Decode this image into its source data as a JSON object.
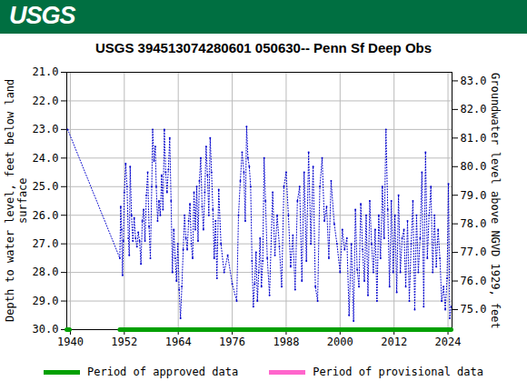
{
  "header": {
    "logo_text": "USGS",
    "color": "#006f41"
  },
  "chart_data": {
    "type": "line",
    "title": "USGS 394513074280601 050630-- Penn Sf Deep Obs",
    "ylabel": "Depth to water level, feet below land surface",
    "y2label": "Groundwater level above NGVD 1929, feet",
    "color": "#0000cc",
    "marker": "dot",
    "line_style": "dotted",
    "grid": true,
    "x": [
      1939.4,
      1951.0,
      1951.2,
      1951.4,
      1951.6,
      1951.8,
      1952.0,
      1952.3,
      1952.6,
      1952.9,
      1953.1,
      1953.3,
      1953.6,
      1953.9,
      1954.2,
      1954.5,
      1954.8,
      1955.1,
      1955.4,
      1955.7,
      1956.0,
      1956.3,
      1956.6,
      1956.9,
      1957.2,
      1957.5,
      1957.8,
      1958.1,
      1958.3,
      1958.6,
      1958.9,
      1959.1,
      1959.4,
      1959.7,
      1960.0,
      1960.3,
      1960.6,
      1960.9,
      1961.2,
      1961.5,
      1961.8,
      1962.1,
      1962.4,
      1962.7,
      1963.0,
      1963.3,
      1963.6,
      1963.9,
      1964.2,
      1964.5,
      1964.8,
      1965.1,
      1965.4,
      1965.7,
      1966.0,
      1966.3,
      1966.6,
      1966.9,
      1967.2,
      1967.5,
      1967.8,
      1968.1,
      1968.4,
      1968.7,
      1969.0,
      1969.3,
      1969.6,
      1969.9,
      1970.2,
      1970.5,
      1970.8,
      1971.1,
      1971.4,
      1971.7,
      1972.0,
      1972.3,
      1972.6,
      1973.0,
      1973.5,
      1974.2,
      1975.0,
      1976.0,
      1977.0,
      1977.4,
      1977.8,
      1978.2,
      1978.6,
      1978.9,
      1979.2,
      1979.5,
      1979.8,
      1980.1,
      1980.4,
      1980.7,
      1981.0,
      1981.3,
      1981.6,
      1981.9,
      1982.2,
      1982.5,
      1982.8,
      1983.1,
      1983.4,
      1983.8,
      1984.3,
      1985.0,
      1985.5,
      1986.0,
      1986.5,
      1987.0,
      1987.5,
      1988.0,
      1988.5,
      1989.0,
      1989.5,
      1990.0,
      1990.5,
      1991.0,
      1991.5,
      1992.0,
      1992.5,
      1993.0,
      1993.5,
      1994.0,
      1994.5,
      1995.0,
      1995.5,
      1996.0,
      1996.5,
      1997.0,
      1997.5,
      1998.0,
      1998.7,
      1999.3,
      2000.0,
      2000.5,
      2001.0,
      2001.5,
      2002.0,
      2002.5,
      2003.0,
      2003.4,
      2003.8,
      2004.2,
      2004.6,
      2005.0,
      2005.4,
      2005.8,
      2006.2,
      2006.6,
      2007.0,
      2007.4,
      2007.8,
      2008.2,
      2008.6,
      2009.0,
      2009.4,
      2009.8,
      2010.2,
      2010.6,
      2011.0,
      2011.4,
      2011.8,
      2012.2,
      2012.6,
      2013.0,
      2013.4,
      2013.8,
      2014.2,
      2014.6,
      2015.0,
      2015.4,
      2015.8,
      2016.2,
      2016.6,
      2017.0,
      2017.4,
      2017.8,
      2018.2,
      2018.6,
      2019.0,
      2019.4,
      2019.8,
      2020.2,
      2020.6,
      2021.0,
      2021.4,
      2021.8,
      2022.2,
      2022.6,
      2023.0,
      2023.4,
      2023.8,
      2024.1,
      2024.4,
      2024.7
    ],
    "values": [
      23.0,
      27.5,
      25.7,
      26.5,
      28.1,
      26.9,
      25.2,
      24.2,
      25.0,
      26.8,
      27.4,
      24.3,
      26.0,
      26.9,
      26.1,
      26.8,
      27.1,
      26.6,
      26.9,
      27.7,
      26.2,
      25.8,
      26.9,
      25.3,
      24.5,
      26.4,
      27.5,
      25.0,
      23.0,
      24.1,
      23.6,
      25.0,
      26.2,
      25.5,
      26.0,
      24.6,
      25.8,
      23.0,
      24.5,
      25.2,
      24.4,
      23.3,
      25.5,
      28.0,
      26.5,
      27.5,
      28.3,
      27.0,
      28.6,
      29.6,
      28.5,
      27.2,
      26.0,
      26.8,
      27.2,
      26.2,
      25.6,
      27.0,
      27.5,
      25.2,
      26.5,
      25.0,
      26.9,
      24.8,
      24.0,
      25.7,
      26.5,
      25.2,
      23.6,
      24.6,
      26.0,
      23.3,
      24.5,
      25.8,
      27.5,
      26.2,
      28.2,
      25.1,
      27.0,
      28.0,
      27.4,
      28.4,
      29.0,
      26.0,
      24.8,
      23.8,
      24.5,
      26.2,
      22.9,
      24.0,
      24.3,
      25.0,
      27.6,
      29.2,
      28.4,
      27.3,
      29.0,
      28.0,
      26.8,
      28.5,
      27.6,
      24.0,
      25.5,
      27.5,
      28.8,
      25.2,
      27.4,
      26.0,
      27.1,
      28.5,
      25.0,
      24.5,
      26.0,
      27.8,
      26.7,
      28.6,
      25.5,
      25.0,
      28.3,
      24.5,
      27.6,
      23.8,
      27.0,
      24.3,
      28.5,
      29.0,
      25.0,
      24.0,
      26.2,
      25.7,
      27.5,
      24.8,
      26.3,
      27.0,
      28.0,
      26.5,
      27.2,
      26.8,
      29.5,
      27.0,
      29.7,
      25.8,
      27.9,
      28.5,
      25.6,
      27.2,
      28.3,
      26.0,
      28.8,
      25.5,
      27.0,
      28.0,
      26.5,
      29.0,
      26.0,
      27.5,
      25.0,
      26.8,
      23.0,
      25.8,
      28.5,
      25.5,
      28.0,
      26.0,
      28.7,
      25.3,
      28.0,
      26.8,
      26.5,
      28.5,
      26.2,
      29.0,
      27.0,
      25.5,
      29.3,
      26.0,
      28.0,
      26.8,
      24.5,
      29.2,
      23.8,
      27.5,
      26.0,
      25.0,
      28.0,
      26.0,
      27.8,
      26.5,
      27.5,
      29.0,
      28.5,
      29.3,
      28.2,
      24.9,
      29.6,
      29.2
    ],
    "xlim": [
      1939.2,
      2024.9
    ],
    "xticks": [
      1940,
      1952,
      1964,
      1976,
      1988,
      2000,
      2012,
      2024
    ],
    "ylim": [
      21,
      30
    ],
    "yticks": [
      {
        "value": 21,
        "label": "21.0"
      },
      {
        "value": 22,
        "label": "22.0"
      },
      {
        "value": 23,
        "label": "23.0"
      },
      {
        "value": 24,
        "label": "24.0"
      },
      {
        "value": 25,
        "label": "25.0"
      },
      {
        "value": 26,
        "label": "26.0"
      },
      {
        "value": 27,
        "label": "27.0"
      },
      {
        "value": 28,
        "label": "28.0"
      },
      {
        "value": 29,
        "label": "29.0"
      },
      {
        "value": 30,
        "label": "30.0"
      }
    ],
    "y2lim": [
      83.3,
      74.3
    ],
    "y2ticks": [
      {
        "value": 75,
        "label": "75.0"
      },
      {
        "value": 76,
        "label": "76.0"
      },
      {
        "value": 77,
        "label": "77.0"
      },
      {
        "value": 78,
        "label": "78.0"
      },
      {
        "value": 79,
        "label": "79.0"
      },
      {
        "value": 80,
        "label": "80.0"
      },
      {
        "value": 81,
        "label": "81.0"
      },
      {
        "value": 82,
        "label": "82.0"
      },
      {
        "value": 83,
        "label": "83.0"
      }
    ],
    "periods": [
      {
        "name": "Period of approved data",
        "color": "#00a000",
        "ranges": [
          [
            1939.2,
            1939.8
          ],
          [
            1951.0,
            2024.7
          ]
        ]
      },
      {
        "name": "Period of provisional data",
        "color": "#ff66cc",
        "ranges": []
      }
    ]
  }
}
